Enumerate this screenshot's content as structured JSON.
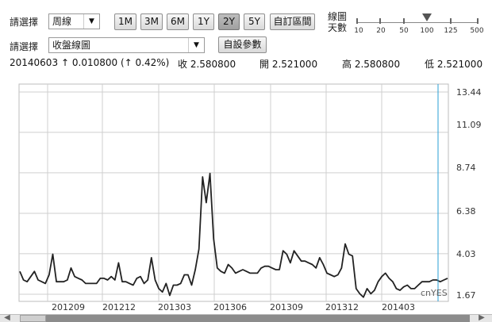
{
  "toolbar": {
    "select_label_1": "請選擇",
    "period_value": "周線",
    "range_buttons": [
      "1M",
      "3M",
      "6M",
      "1Y",
      "2Y",
      "5Y"
    ],
    "active_range": "2Y",
    "custom_range_label": "自訂區間",
    "ma_label_line1": "線圖",
    "ma_label_line2": "天數",
    "slider_ticks": [
      "10",
      "20",
      "50",
      "100",
      "125",
      "500"
    ],
    "slider_value": "100",
    "select_label_2": "請選擇",
    "chart_type_value": "收盤線圖",
    "custom_params_label": "自設參數"
  },
  "quote": {
    "date": "20140603",
    "change": "↑ 0.010800 (↑ 0.42%)",
    "close": "收 2.580800",
    "open": "開 2.521000",
    "high": "高 2.580800",
    "low": "低 2.521000"
  },
  "colors": {
    "line": "#222222",
    "grid": "#cfcfcf",
    "cursor": "#2a9fd6",
    "active_button": "#a8a8a8"
  },
  "watermark": "cnYES",
  "chart_data": {
    "type": "line",
    "title": "",
    "xlabel": "",
    "ylabel": "",
    "ylim": [
      1.67,
      13.44
    ],
    "y_ticks": [
      "13.44",
      "11.09",
      "8.74",
      "6.38",
      "4.03",
      "1.67"
    ],
    "x_tick_labels": [
      "201209",
      "201212",
      "201303",
      "201306",
      "201309",
      "201312",
      "201403"
    ],
    "grid": true,
    "cursor_label": "20140603",
    "series": [
      {
        "values": [
          3.0,
          2.5,
          2.4,
          2.7,
          3.0,
          2.5,
          2.4,
          2.3,
          2.8,
          4.0,
          2.4,
          2.4,
          2.4,
          2.5,
          3.2,
          2.7,
          2.6,
          2.5,
          2.3,
          2.3,
          2.3,
          2.3,
          2.6,
          2.6,
          2.5,
          2.7,
          2.5,
          3.5,
          2.4,
          2.4,
          2.3,
          2.2,
          2.6,
          2.7,
          2.3,
          2.5,
          3.8,
          2.5,
          2.0,
          1.8,
          2.3,
          1.6,
          2.2,
          2.2,
          2.3,
          2.8,
          2.8,
          2.2,
          3.1,
          4.3,
          8.5,
          7.0,
          8.7,
          4.9,
          3.2,
          3.0,
          2.9,
          3.4,
          3.2,
          2.9,
          3.0,
          3.1,
          3.0,
          2.9,
          2.9,
          2.9,
          3.2,
          3.3,
          3.3,
          3.2,
          3.1,
          3.1,
          4.2,
          4.0,
          3.5,
          4.2,
          3.9,
          3.6,
          3.6,
          3.5,
          3.4,
          3.2,
          3.8,
          3.4,
          2.9,
          2.8,
          2.7,
          2.8,
          3.2,
          4.6,
          4.0,
          3.9,
          2.0,
          1.7,
          1.5,
          2.0,
          1.7,
          1.9,
          2.4,
          2.7,
          2.9,
          2.6,
          2.4,
          2.0,
          1.9,
          2.1,
          2.2,
          2.0,
          2.0,
          2.2,
          2.4,
          2.4,
          2.4,
          2.5,
          2.5,
          2.4,
          2.5,
          2.6
        ]
      }
    ]
  }
}
